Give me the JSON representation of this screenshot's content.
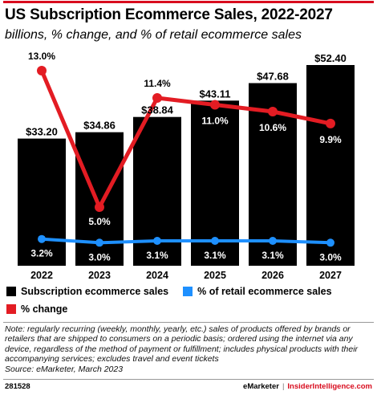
{
  "header": {
    "title": "US Subscription Ecommerce Sales, 2022-2027",
    "subtitle": "billions, % change, and % of retail ecommerce sales"
  },
  "colors": {
    "accent": "#d80c1e",
    "bars": "#000000",
    "pct_change_line": "#e31c23",
    "pct_retail_line": "#1e90ff"
  },
  "chart_data": {
    "type": "bar",
    "categories": [
      "2022",
      "2023",
      "2024",
      "2025",
      "2026",
      "2027"
    ],
    "series": [
      {
        "name": "Subscription ecommerce sales",
        "type": "bar",
        "values": [
          33.2,
          34.86,
          38.84,
          43.11,
          47.68,
          52.4
        ],
        "labels": [
          "$33.20",
          "$34.86",
          "$38.84",
          "$43.11",
          "$47.68",
          "$52.40"
        ],
        "color": "#000000"
      },
      {
        "name": "% of retail ecommerce sales",
        "type": "line",
        "values": [
          3.2,
          3.0,
          3.1,
          3.1,
          3.1,
          3.0
        ],
        "labels": [
          "3.2%",
          "3.0%",
          "3.1%",
          "3.1%",
          "3.1%",
          "3.0%"
        ],
        "color": "#1e90ff"
      },
      {
        "name": "% change",
        "type": "line",
        "values": [
          13.0,
          5.0,
          11.4,
          11.0,
          10.6,
          9.9
        ],
        "labels": [
          "13.0%",
          "5.0%",
          "11.4%",
          "11.0%",
          "10.6%",
          "9.9%"
        ],
        "color": "#e31c23"
      }
    ],
    "title": "US Subscription Ecommerce Sales, 2022-2027",
    "subtitle": "billions, % change, and % of retail ecommerce sales",
    "legend_position": "bottom",
    "grid": false
  },
  "legend": {
    "items": [
      {
        "label": "Subscription ecommerce sales",
        "color": "#000000"
      },
      {
        "label": "% of retail ecommerce sales",
        "color": "#1e90ff"
      },
      {
        "label": "% change",
        "color": "#e31c23"
      }
    ]
  },
  "note": {
    "text": "Note: regularly recurring (weekly, monthly, yearly, etc.) sales of products offered by brands or retailers that are shipped to consumers on a periodic basis; ordered using the internet via any device, regardless of the method of payment or fulfillment; includes physical products with their accompanying services; excludes travel and event tickets",
    "source": "Source: eMarketer, March 2023"
  },
  "footer": {
    "id": "281528",
    "brand": "eMarketer",
    "separator": "|",
    "insider": "InsiderIntelligence.com"
  }
}
